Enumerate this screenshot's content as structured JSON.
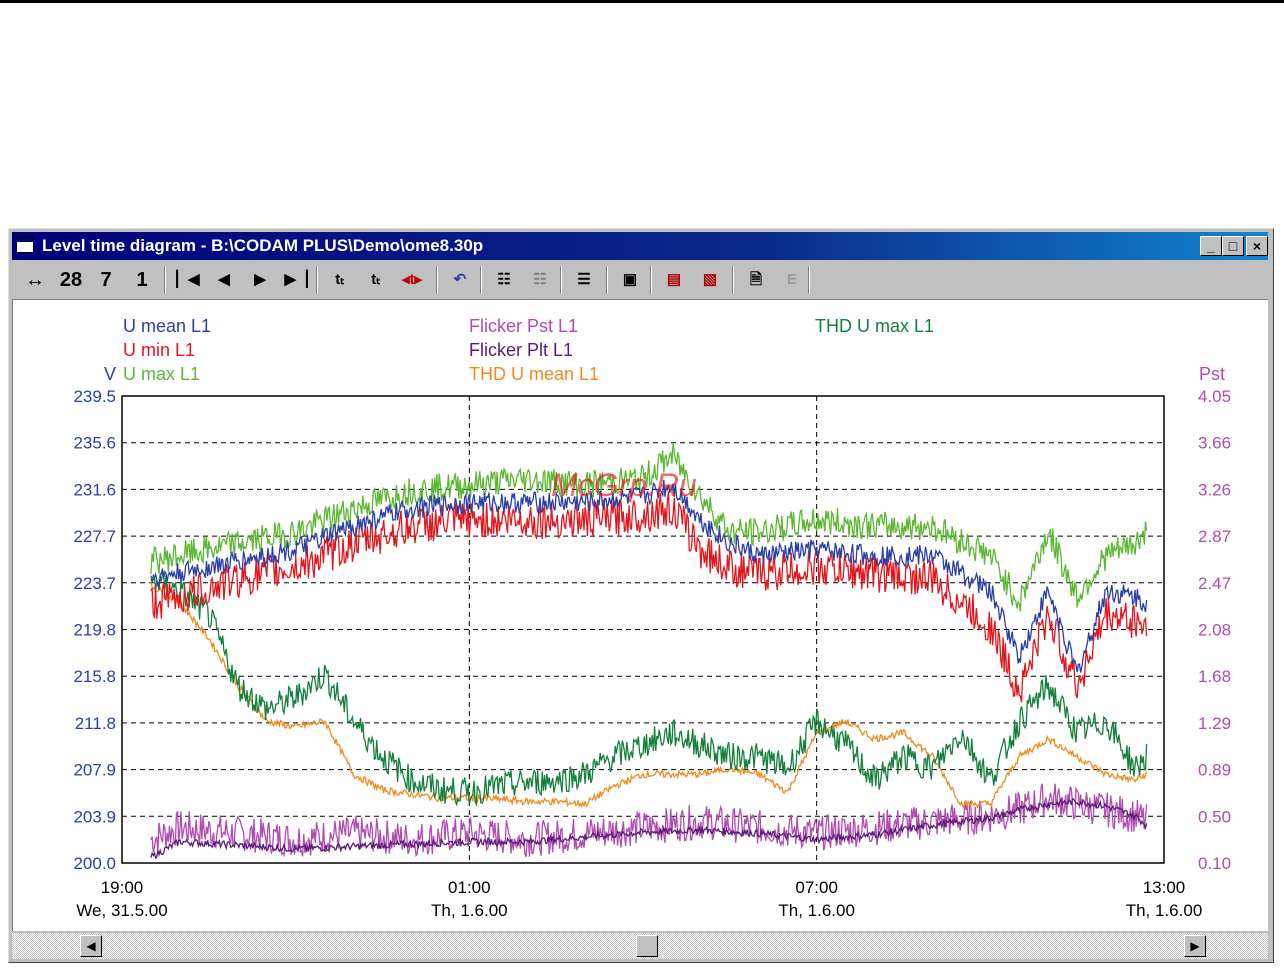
{
  "window": {
    "title": "Level time diagram  - B:\\CODAM PLUS\\Demo\\ome8.30p",
    "minimize": "_",
    "maximize": "□",
    "close": "×"
  },
  "toolbar": {
    "span_arrow": "↔",
    "zoom_28": "28",
    "zoom_7": "7",
    "zoom_1": "1"
  },
  "watermark": "McGrp.Ru",
  "chart_data": {
    "type": "line",
    "left_axis": {
      "unit": "V",
      "ticks": [
        "239.5",
        "235.6",
        "231.6",
        "227.7",
        "223.7",
        "219.8",
        "215.8",
        "211.8",
        "207.9",
        "203.9",
        "200.0"
      ],
      "ylim": [
        200.0,
        239.5
      ]
    },
    "right_axis": {
      "unit": "Pst",
      "ticks": [
        "4.05",
        "3.66",
        "3.26",
        "2.87",
        "2.47",
        "2.08",
        "1.68",
        "1.29",
        "0.89",
        "0.50",
        "0.10"
      ],
      "ylim": [
        0.1,
        4.05
      ]
    },
    "x_ticks": [
      {
        "time": "19:00",
        "date": "We, 31.5.00"
      },
      {
        "time": "01:00",
        "date": "Th, 1.6.00"
      },
      {
        "time": "07:00",
        "date": "Th, 1.6.00"
      },
      {
        "time": "13:00",
        "date": "Th, 1.6.00"
      }
    ],
    "grid": "dashed",
    "legend": [
      {
        "label": "U mean L1",
        "color": "#2b3fa8",
        "axis": "left"
      },
      {
        "label": "U min L1",
        "color": "#e4161d",
        "axis": "left"
      },
      {
        "label": "U max L1",
        "color": "#5cb833",
        "axis": "left"
      },
      {
        "label": "Flicker Pst L1",
        "color": "#b14cb0",
        "axis": "right"
      },
      {
        "label": "Flicker Plt L1",
        "color": "#5a1a78",
        "axis": "right"
      },
      {
        "label": "THD U mean L1",
        "color": "#f08a1c",
        "axis": "right"
      },
      {
        "label": "THD U max L1",
        "color": "#14803c",
        "axis": "right"
      }
    ],
    "x_hours_range": [
      0,
      18
    ],
    "series": [
      {
        "name": "U max L1",
        "axis": "left",
        "color": "#5cb833",
        "x": [
          0.5,
          1,
          2,
          3,
          4,
          5,
          6,
          7,
          8,
          9,
          9.5,
          10,
          10.5,
          11,
          12,
          13,
          14,
          15,
          15.5,
          16,
          16.5,
          17,
          17.5,
          17.7
        ],
        "y": [
          225.5,
          226,
          227,
          228,
          230,
          231.5,
          232,
          232.5,
          232,
          232.5,
          234.5,
          231,
          228,
          228,
          229,
          228.5,
          228.5,
          226,
          222,
          228,
          222.5,
          226,
          227,
          228
        ]
      },
      {
        "name": "U mean L1",
        "axis": "left",
        "color": "#2b3fa8",
        "x": [
          0.5,
          1,
          2,
          3,
          4,
          5,
          6,
          7,
          8,
          9,
          9.5,
          10,
          10.5,
          11,
          12,
          13,
          14,
          15,
          15.5,
          16,
          16.5,
          17,
          17.5,
          17.7
        ],
        "y": [
          224,
          224.5,
          225.5,
          226.5,
          228.5,
          230,
          230.5,
          230.5,
          230.5,
          231,
          232,
          229,
          227,
          226,
          226.5,
          226,
          226,
          223,
          217.5,
          223,
          216,
          223,
          222.5,
          222
        ]
      },
      {
        "name": "U min L1",
        "axis": "left",
        "color": "#e4161d",
        "x": [
          0.5,
          1,
          2,
          3,
          4,
          5,
          6,
          7,
          8,
          9,
          9.5,
          10,
          10.5,
          11,
          12,
          13,
          14,
          15,
          15.5,
          16,
          16.5,
          17,
          17.5,
          17.7
        ],
        "y": [
          222,
          222.5,
          224,
          225,
          227,
          228.5,
          229,
          229,
          229,
          229.5,
          230,
          226.5,
          225,
          224.5,
          225,
          224.5,
          224,
          220,
          214.5,
          221,
          215,
          221,
          220.5,
          220
        ]
      },
      {
        "name": "THD U max L1",
        "axis": "right",
        "color": "#14803c",
        "x": [
          0.5,
          1,
          1.5,
          2,
          2.5,
          3,
          3.5,
          4,
          4.5,
          5,
          5.5,
          6,
          6.5,
          7,
          7.5,
          8,
          8.5,
          9,
          9.5,
          10,
          10.5,
          11,
          11.5,
          12,
          12.5,
          13,
          13.5,
          14,
          14.5,
          15,
          15.5,
          16,
          16.5,
          17,
          17.5,
          17.7
        ],
        "y": [
          2.5,
          2.4,
          2.2,
          1.6,
          1.4,
          1.5,
          1.7,
          1.3,
          1.0,
          0.8,
          0.72,
          0.7,
          0.75,
          0.78,
          0.8,
          0.85,
          1.0,
          1.1,
          1.2,
          1.1,
          1.0,
          1.0,
          0.9,
          1.3,
          1.1,
          0.8,
          1.0,
          0.9,
          1.2,
          0.8,
          1.3,
          1.6,
          1.2,
          1.3,
          0.9,
          1.0
        ]
      },
      {
        "name": "THD U mean L1",
        "axis": "right",
        "color": "#f08a1c",
        "x": [
          0.5,
          1,
          1.5,
          2,
          2.5,
          3,
          3.5,
          4,
          4.5,
          5,
          5.5,
          6,
          6.5,
          7,
          7.5,
          8,
          8.5,
          9,
          9.5,
          10,
          10.5,
          11,
          11.5,
          12,
          12.5,
          13,
          13.5,
          14,
          14.5,
          15,
          15.5,
          16,
          16.5,
          17,
          17.5,
          17.7
        ],
        "y": [
          2.45,
          2.3,
          2.0,
          1.6,
          1.3,
          1.25,
          1.3,
          0.85,
          0.72,
          0.68,
          0.65,
          0.65,
          0.64,
          0.62,
          0.62,
          0.6,
          0.75,
          0.85,
          0.85,
          0.85,
          0.9,
          0.85,
          0.7,
          1.2,
          1.3,
          1.15,
          1.2,
          1.0,
          0.6,
          0.6,
          1.0,
          1.15,
          1.0,
          0.85,
          0.8,
          0.85
        ]
      },
      {
        "name": "Flicker Pst L1",
        "axis": "right",
        "color": "#b14cb0",
        "x": [
          0.5,
          1,
          2,
          3,
          4,
          5,
          6,
          7,
          8,
          9,
          10,
          11,
          12,
          13,
          14,
          15,
          15.5,
          16,
          16.5,
          17,
          17.5,
          17.7
        ],
        "y": [
          0.3,
          0.4,
          0.35,
          0.3,
          0.35,
          0.3,
          0.35,
          0.3,
          0.35,
          0.4,
          0.45,
          0.4,
          0.35,
          0.4,
          0.45,
          0.5,
          0.55,
          0.65,
          0.6,
          0.55,
          0.5,
          0.45
        ]
      },
      {
        "name": "Flicker Plt L1",
        "axis": "right",
        "color": "#5a1a78",
        "x": [
          0.5,
          1,
          2,
          3,
          4,
          5,
          6,
          7,
          8,
          9,
          10,
          11,
          12,
          13,
          14,
          15,
          15.5,
          16,
          16.5,
          17,
          17.5,
          17.7
        ],
        "y": [
          0.15,
          0.28,
          0.25,
          0.22,
          0.24,
          0.26,
          0.28,
          0.28,
          0.32,
          0.36,
          0.38,
          0.35,
          0.3,
          0.34,
          0.42,
          0.48,
          0.55,
          0.6,
          0.62,
          0.58,
          0.5,
          0.42
        ]
      }
    ]
  }
}
